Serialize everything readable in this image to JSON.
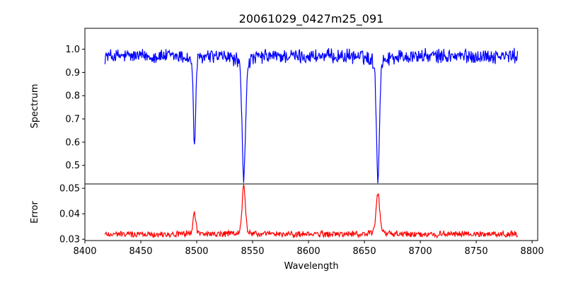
{
  "chart_data": {
    "type": "line",
    "title": "20061029_0427m25_091",
    "xlabel": "Wavelength",
    "xlim": [
      8400,
      8805
    ],
    "xticks": [
      8400,
      8450,
      8500,
      8550,
      8600,
      8650,
      8700,
      8750,
      8800
    ],
    "legend": "none",
    "grid": false,
    "panels": [
      {
        "name": "spectrum",
        "ylabel": "Spectrum",
        "ylim": [
          0.42,
          1.09
        ],
        "yticks": [
          0.5,
          0.6,
          0.7,
          0.8,
          0.9,
          1.0
        ],
        "ytick_labels": [
          "0.5",
          "0.6",
          "0.7",
          "0.8",
          "0.9",
          "1.0"
        ],
        "color": "#0000ff",
        "x_start": 8418,
        "x_end": 8787,
        "baseline": 0.97,
        "noise": 0.03,
        "features": [
          {
            "center": 8498.0,
            "depth": 0.39,
            "width": 1.0
          },
          {
            "center": 8542.1,
            "depth": 0.53,
            "width": 1.5
          },
          {
            "center": 8662.1,
            "depth": 0.53,
            "width": 1.3
          }
        ]
      },
      {
        "name": "error",
        "ylabel": "Error",
        "ylim": [
          0.0295,
          0.0517
        ],
        "yticks": [
          0.03,
          0.04,
          0.05
        ],
        "ytick_labels": [
          "0.03",
          "0.04",
          "0.05"
        ],
        "color": "#ff0000",
        "x_start": 8418,
        "x_end": 8787,
        "baseline": 0.032,
        "noise": 0.0012,
        "features": [
          {
            "center": 8498.0,
            "height": 0.0085,
            "width": 1.2
          },
          {
            "center": 8542.1,
            "height": 0.019,
            "width": 1.4
          },
          {
            "center": 8662.1,
            "height": 0.0155,
            "width": 1.6
          }
        ]
      }
    ],
    "xtick_labels": [
      "8400",
      "8450",
      "8500",
      "8550",
      "8600",
      "8650",
      "8700",
      "8750",
      "8800"
    ]
  }
}
